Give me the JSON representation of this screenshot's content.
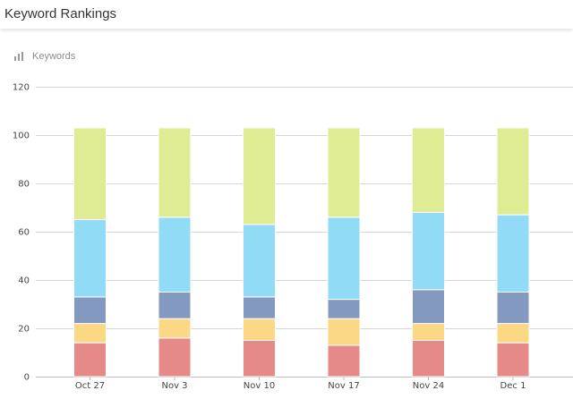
{
  "header": {
    "title": "Keyword Rankings"
  },
  "legend": {
    "label": "Keywords",
    "icon": "bar-chart-icon"
  },
  "chart_data": {
    "type": "bar",
    "stacked": true,
    "categories": [
      "Oct 27",
      "Nov 3",
      "Nov 10",
      "Nov 17",
      "Nov 24",
      "Dec 1"
    ],
    "series": [
      {
        "color": "#e58a89",
        "values": [
          14,
          16,
          15,
          13,
          15,
          14
        ]
      },
      {
        "color": "#fbd883",
        "values": [
          8,
          8,
          9,
          11,
          7,
          8
        ]
      },
      {
        "color": "#8399bf",
        "values": [
          11,
          11,
          9,
          8,
          14,
          13
        ]
      },
      {
        "color": "#91dbf7",
        "values": [
          32,
          31,
          30,
          34,
          32,
          32
        ]
      },
      {
        "color": "#e0ec94",
        "values": [
          38,
          37,
          40,
          37,
          35,
          36
        ]
      }
    ],
    "yticks": [
      0,
      20,
      40,
      60,
      80,
      100,
      120
    ],
    "ylim": [
      0,
      120
    ],
    "grid": true,
    "xlabel": "",
    "ylabel": ""
  }
}
